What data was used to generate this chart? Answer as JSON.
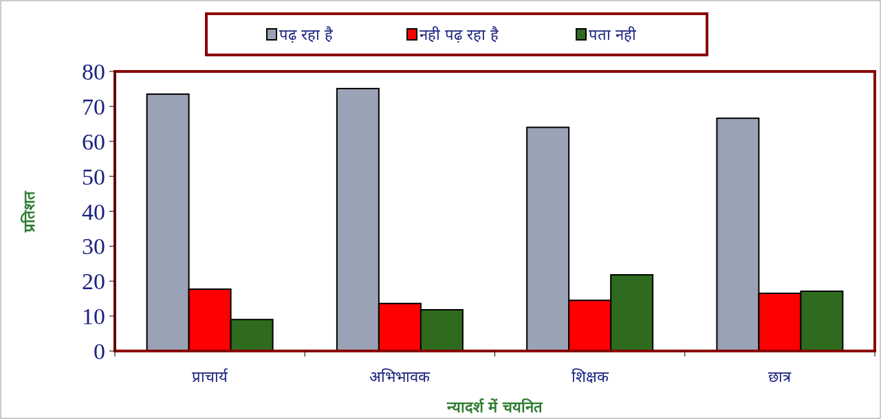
{
  "chart_data": {
    "type": "bar",
    "xlabel": "न्यादर्श में चयनित",
    "ylabel": "प्रतिशत",
    "categories": [
      "प्राचार्य",
      "अभिभावक",
      "शिक्षक",
      "छात्र"
    ],
    "series": [
      {
        "name": "पढ़ रहा है",
        "color": "#9aa3b5",
        "values": [
          73.5,
          75.1,
          64.0,
          66.6
        ]
      },
      {
        "name": "नही पढ़ रहा है",
        "color": "#ff0000",
        "values": [
          17.7,
          13.6,
          14.5,
          16.5
        ]
      },
      {
        "name": "पता नही",
        "color": "#2e6b1e",
        "values": [
          9.0,
          11.8,
          21.8,
          17.1
        ]
      }
    ],
    "ylim": [
      0,
      80
    ],
    "yticks": [
      0,
      10,
      20,
      30,
      40,
      50,
      60,
      70,
      80
    ],
    "legend": "top",
    "grid": false
  }
}
